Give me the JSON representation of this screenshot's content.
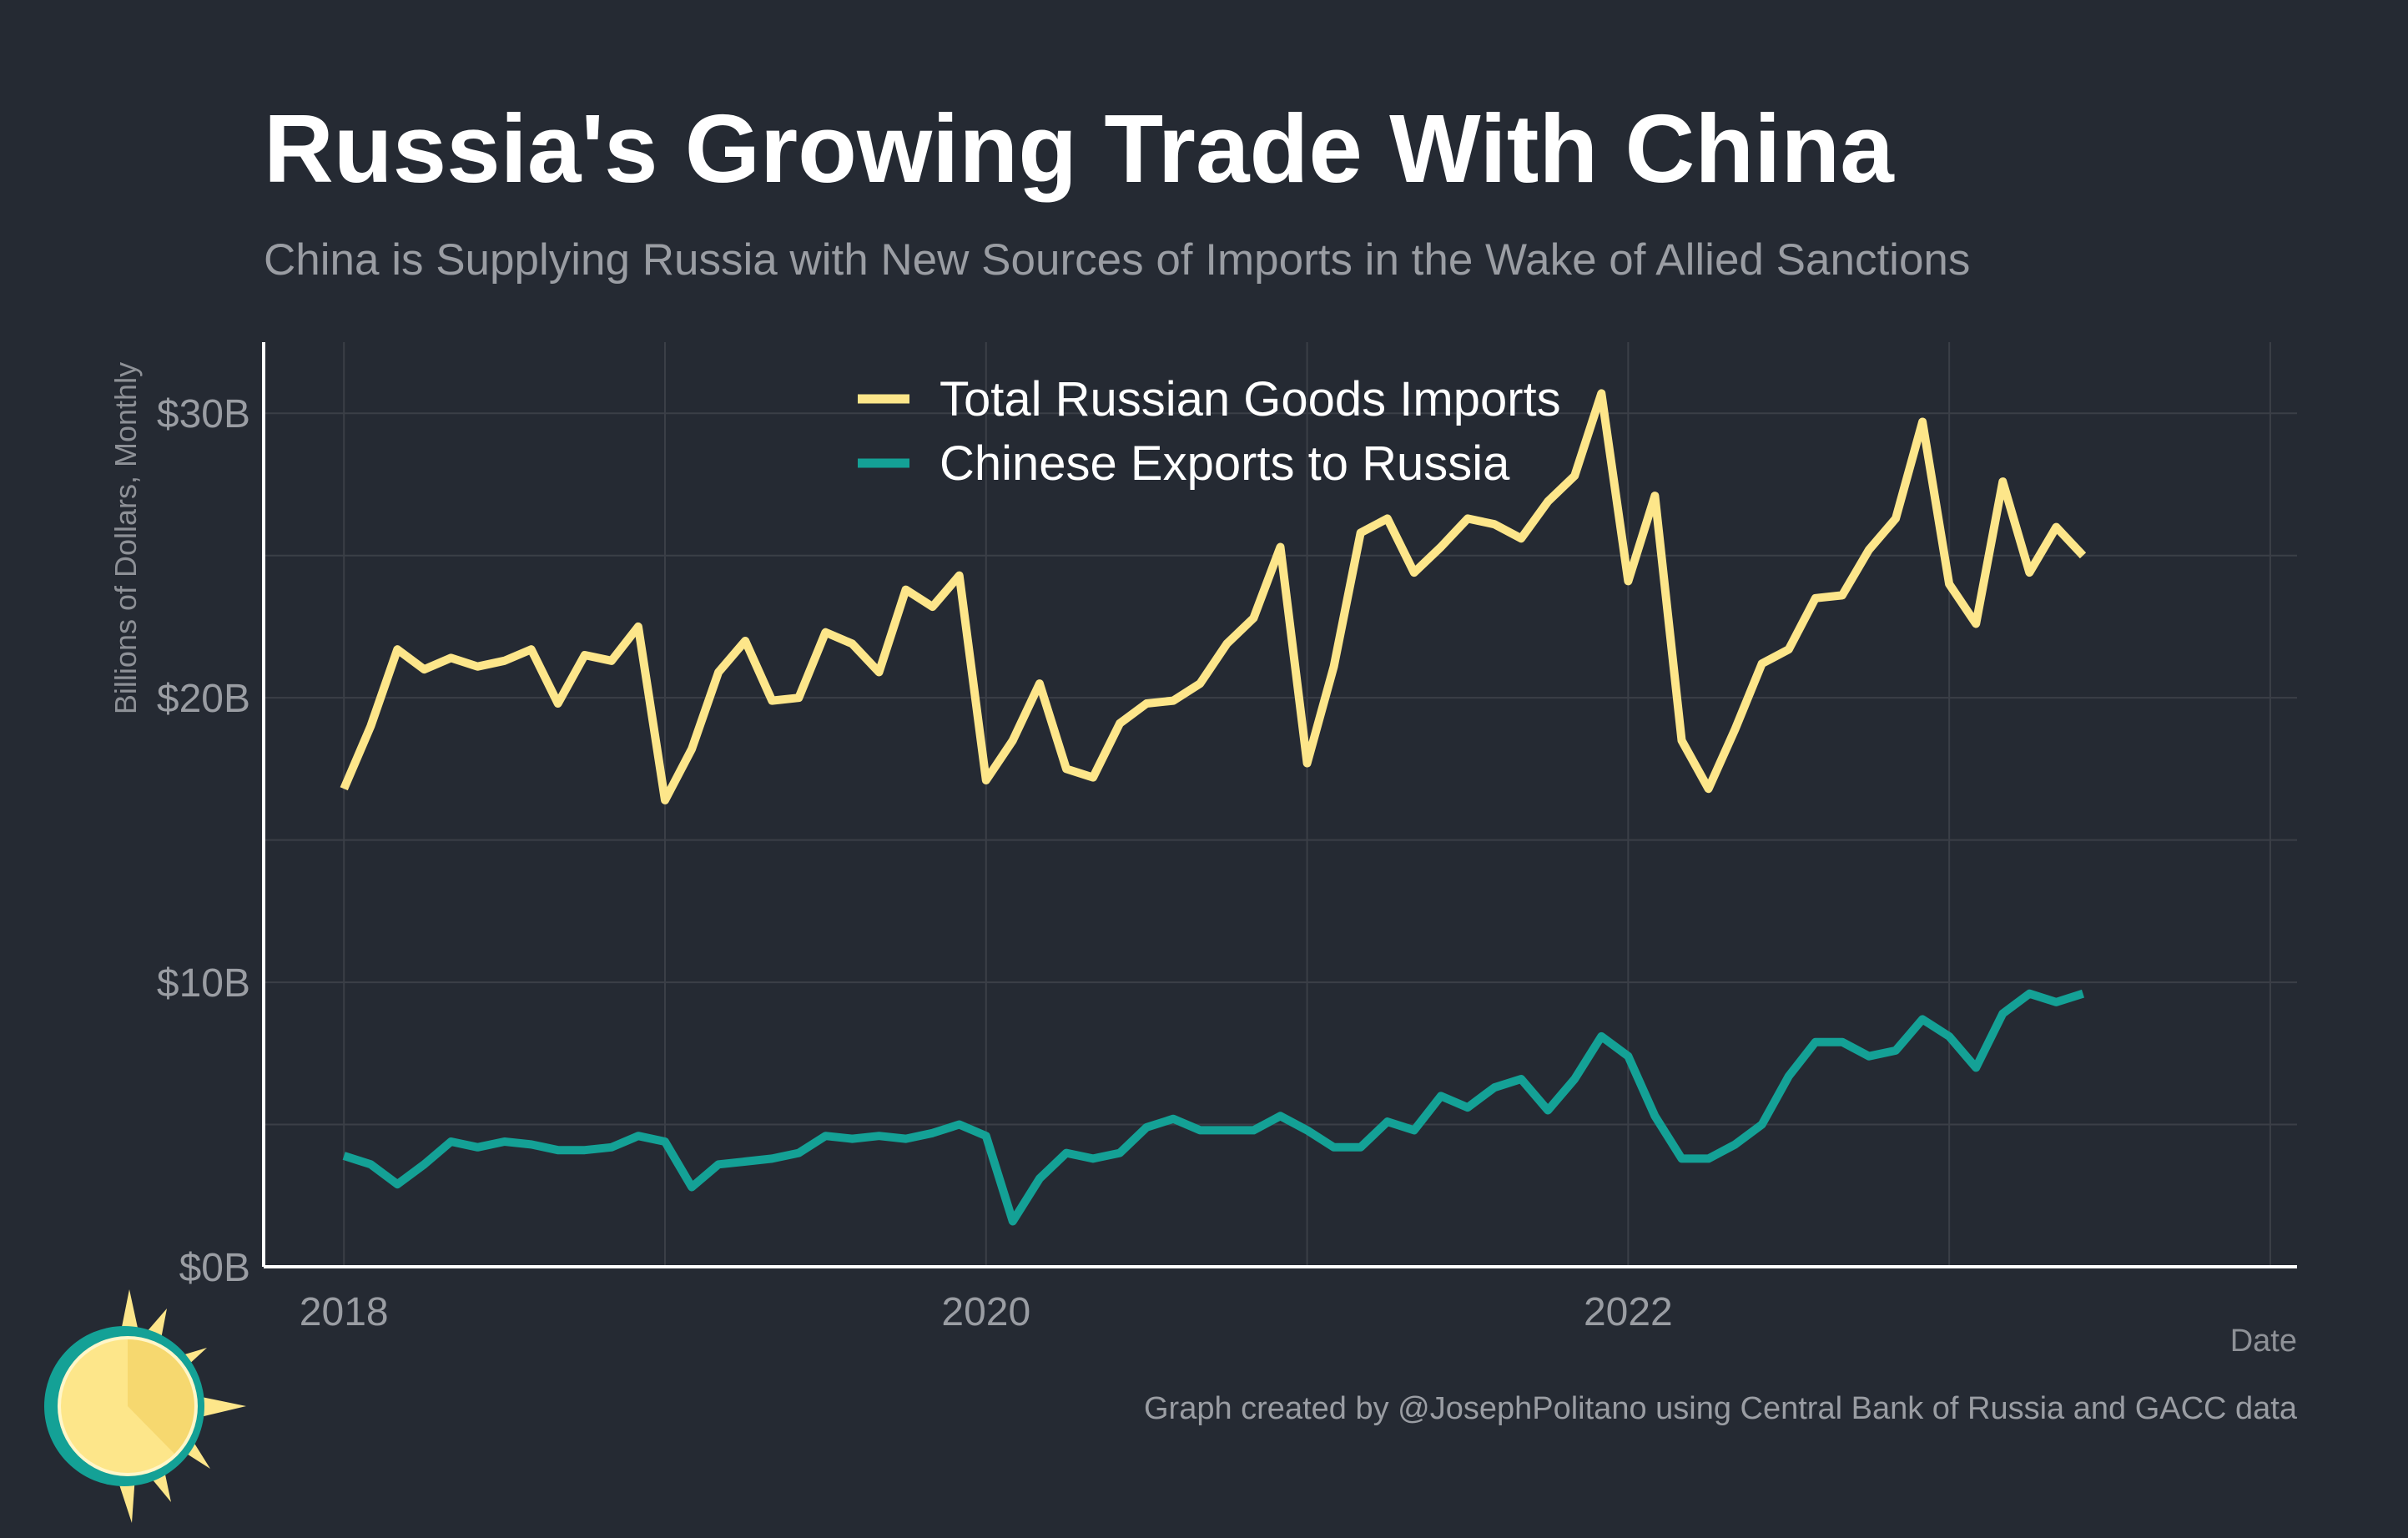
{
  "chart_data": {
    "type": "line",
    "title": "Russia's Growing Trade With China",
    "subtitle": "China is Supplying Russia with New Sources of Imports in the Wake of Allied Sanctions",
    "xlabel": "Date",
    "ylabel": "Billions of Dollars, Monthly",
    "x_start": "2018-01",
    "x_frequency": "monthly",
    "xlim": [
      "2017-10",
      "2024-02"
    ],
    "ylim": [
      0,
      32.5
    ],
    "x_ticks": [
      {
        "label": "2018",
        "date": "2018-01"
      },
      {
        "label": "2020",
        "date": "2020-01"
      },
      {
        "label": "2022",
        "date": "2022-01"
      }
    ],
    "y_ticks": [
      {
        "label": "$0B",
        "value": 0
      },
      {
        "label": "$10B",
        "value": 10
      },
      {
        "label": "$20B",
        "value": 20
      },
      {
        "label": "$30B",
        "value": 30
      }
    ],
    "grid": true,
    "legend_position": "top-center",
    "series": [
      {
        "name": "Total Russian Goods Imports",
        "color": "#fde68a",
        "values": [
          16.8,
          19.0,
          21.7,
          21.0,
          21.4,
          21.1,
          21.3,
          21.7,
          19.8,
          21.5,
          21.3,
          22.5,
          16.4,
          18.2,
          20.9,
          22.0,
          19.9,
          20.0,
          22.3,
          21.9,
          20.9,
          23.8,
          23.2,
          24.3,
          17.1,
          18.5,
          20.5,
          17.5,
          17.2,
          19.1,
          19.8,
          19.9,
          20.5,
          21.9,
          22.8,
          25.3,
          17.7,
          21.1,
          25.8,
          26.3,
          24.4,
          25.3,
          26.3,
          26.1,
          25.6,
          26.9,
          27.8,
          30.7,
          24.1,
          27.1,
          18.5,
          16.8,
          18.9,
          21.2,
          21.7,
          23.5,
          23.6,
          25.2,
          26.3,
          29.7,
          24.0,
          22.6,
          27.6,
          24.4,
          26.0,
          25.0
        ]
      },
      {
        "name": "Chinese Exports to Russia",
        "color": "#14a196",
        "values": [
          3.9,
          3.6,
          2.9,
          3.6,
          4.4,
          4.2,
          4.4,
          4.3,
          4.1,
          4.1,
          4.2,
          4.6,
          4.4,
          2.8,
          3.6,
          3.7,
          3.8,
          4.0,
          4.6,
          4.5,
          4.6,
          4.5,
          4.7,
          5.0,
          4.6,
          1.6,
          3.1,
          4.0,
          3.8,
          4.0,
          4.9,
          5.2,
          4.8,
          4.8,
          4.8,
          5.3,
          4.8,
          4.2,
          4.2,
          5.1,
          4.8,
          6.0,
          5.6,
          6.3,
          6.6,
          5.5,
          6.6,
          8.1,
          7.4,
          5.3,
          3.8,
          3.8,
          4.3,
          5.0,
          6.7,
          7.9,
          7.9,
          7.4,
          7.6,
          8.7,
          8.1,
          7.0,
          8.9,
          9.6,
          9.3,
          9.6
        ]
      }
    ]
  },
  "caption": "Graph created by @JosephPolitano using Central Bank of Russia and GACC data",
  "logo": {
    "name": "sun-logo",
    "colors": {
      "ring": "#14a196",
      "sun": "#fde68a",
      "sun_shade": "#f5d66b"
    }
  },
  "colors": {
    "background": "#252a33",
    "grid": "#3b3f47",
    "axis": "#ffffff"
  }
}
